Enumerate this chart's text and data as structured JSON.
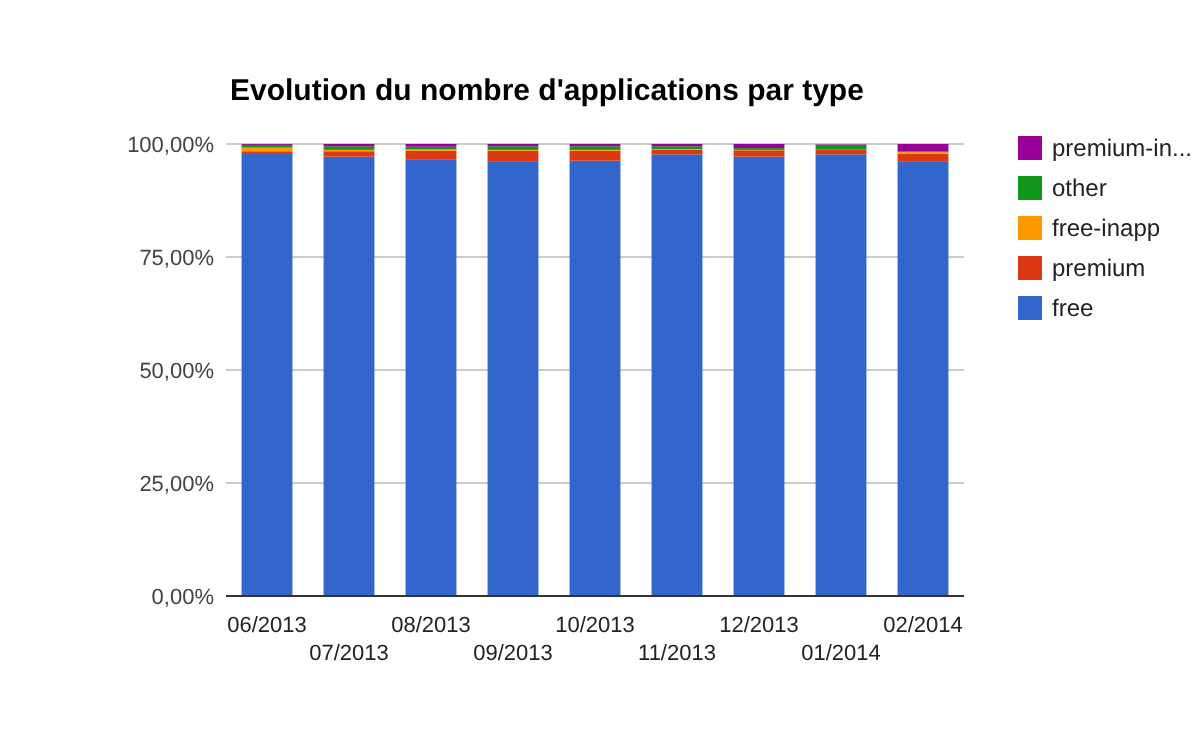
{
  "chart_data": {
    "type": "bar",
    "title": "Evolution du nombre d'applications par type",
    "stacked": true,
    "categories": [
      "06/2013",
      "07/2013",
      "08/2013",
      "09/2013",
      "10/2013",
      "11/2013",
      "12/2013",
      "01/2014",
      "02/2014"
    ],
    "series": [
      {
        "name": "free",
        "color": "#3366cc",
        "values": [
          97.8,
          97.2,
          96.5,
          96.2,
          96.3,
          97.7,
          97.2,
          97.7,
          96.2
        ]
      },
      {
        "name": "premium",
        "color": "#dc3912",
        "values": [
          0.6,
          1.2,
          2.0,
          2.3,
          2.2,
          1.0,
          1.4,
          1.1,
          1.7
        ]
      },
      {
        "name": "free-inapp",
        "color": "#ff9900",
        "values": [
          0.8,
          0.3,
          0.3,
          0.2,
          0.2,
          0.2,
          0.1,
          null,
          0.3
        ]
      },
      {
        "name": "other",
        "color": "#109618",
        "values": [
          0.6,
          0.8,
          0.6,
          0.8,
          0.8,
          0.6,
          0.4,
          0.8,
          0.2
        ]
      },
      {
        "name": "premium-in...",
        "color": "#990099",
        "values": [
          0.2,
          0.5,
          0.6,
          0.5,
          0.5,
          0.5,
          0.9,
          0.3,
          1.6
        ]
      }
    ],
    "ylim": [
      0,
      100
    ],
    "yticks": [
      {
        "value": 0,
        "label": "0,00%"
      },
      {
        "value": 25,
        "label": "25,00%"
      },
      {
        "value": 50,
        "label": "50,00%"
      },
      {
        "value": 75,
        "label": "75,00%"
      },
      {
        "value": 100,
        "label": "100,00%"
      }
    ],
    "grid": "y",
    "legend": "right"
  }
}
